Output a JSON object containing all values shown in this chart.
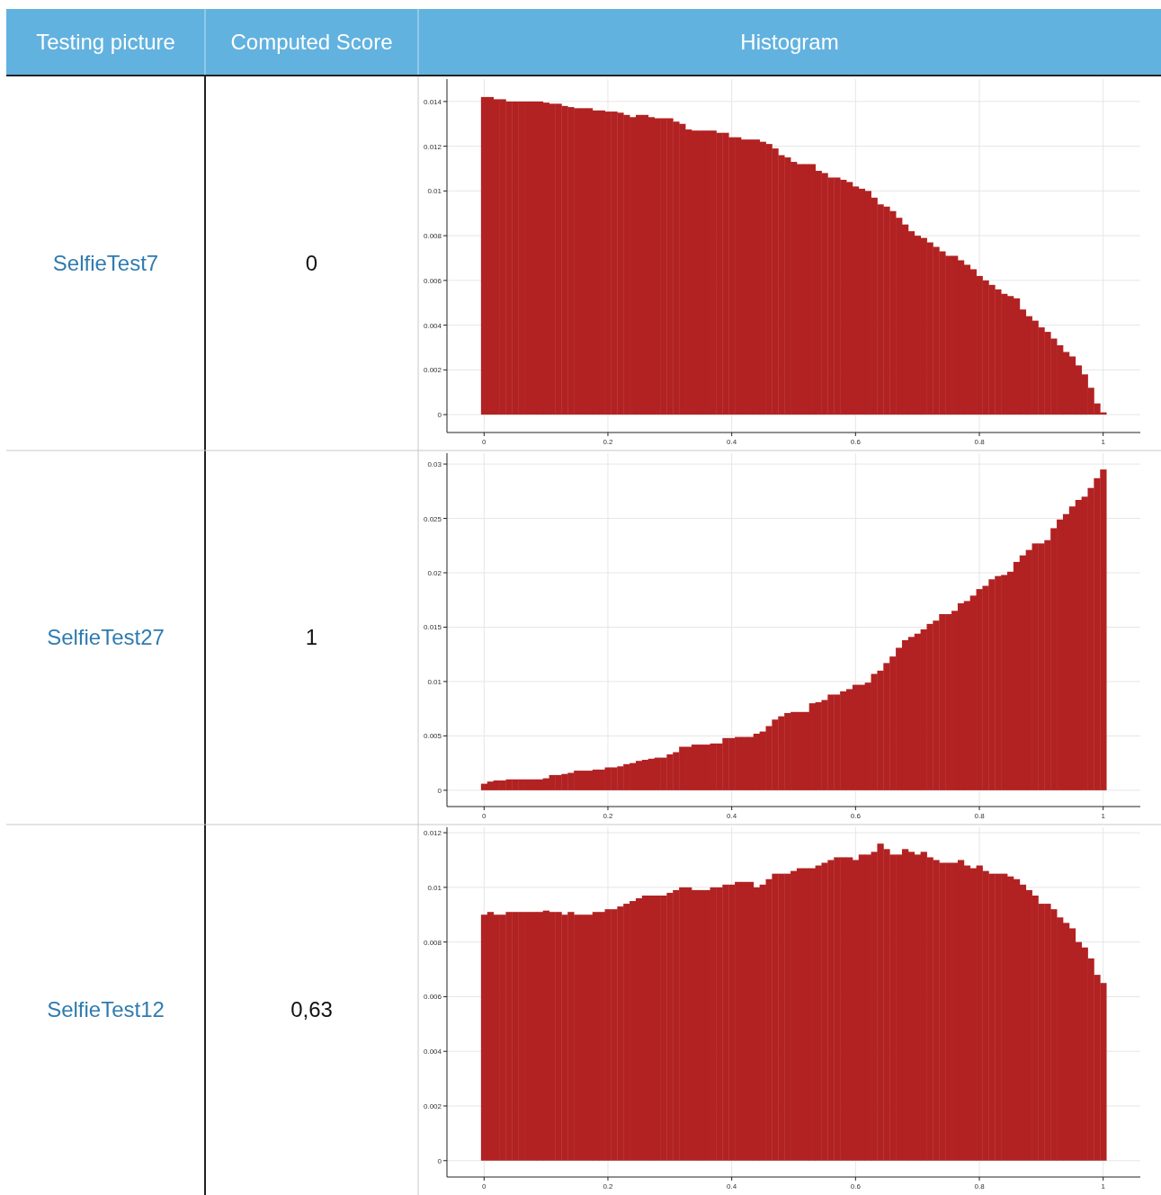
{
  "chart_data": [
    {
      "type": "other",
      "annotations": [
        "Testing picture",
        "Computed Score",
        "Histogram"
      ]
    },
    {
      "type": "other",
      "annotations": [
        "SelfieTest7",
        "0"
      ]
    },
    {
      "type": "histogram",
      "color": "#b22222",
      "xlim": [
        -0.06,
        1.06
      ],
      "ylim": [
        -0.0008,
        0.015
      ],
      "grid": true,
      "xticks": [
        0,
        0.2,
        0.4,
        0.6,
        0.8,
        1
      ],
      "yticks": [
        0,
        0.002,
        0.004,
        0.006,
        0.008,
        0.01,
        0.012,
        0.014
      ],
      "values": [
        0.0142,
        0.0142,
        0.0141,
        0.0141,
        0.014,
        0.014,
        0.014,
        0.014,
        0.014,
        0.014,
        0.01395,
        0.0139,
        0.0139,
        0.0138,
        0.01375,
        0.0137,
        0.0137,
        0.0137,
        0.0136,
        0.0136,
        0.01355,
        0.01355,
        0.0135,
        0.0134,
        0.0133,
        0.0134,
        0.0134,
        0.0133,
        0.01325,
        0.01325,
        0.01325,
        0.0131,
        0.013,
        0.01275,
        0.0127,
        0.0127,
        0.0127,
        0.0127,
        0.0126,
        0.0126,
        0.0124,
        0.0124,
        0.0123,
        0.0123,
        0.0123,
        0.0122,
        0.0121,
        0.0119,
        0.0116,
        0.0115,
        0.0113,
        0.0112,
        0.0112,
        0.0112,
        0.0109,
        0.0108,
        0.0106,
        0.0106,
        0.0105,
        0.0104,
        0.0102,
        0.0101,
        0.01,
        0.0097,
        0.0094,
        0.0093,
        0.0091,
        0.0088,
        0.0085,
        0.0082,
        0.008,
        0.0079,
        0.0077,
        0.0075,
        0.0073,
        0.0071,
        0.0071,
        0.0069,
        0.0067,
        0.0065,
        0.0062,
        0.006,
        0.0058,
        0.0056,
        0.0054,
        0.0053,
        0.0052,
        0.0047,
        0.0044,
        0.0042,
        0.0039,
        0.0037,
        0.0034,
        0.0031,
        0.0028,
        0.0026,
        0.0022,
        0.0018,
        0.0012,
        0.0005,
        0.0001
      ],
      "bins": [
        -0.005,
        0.005,
        0.015,
        0.025,
        0.035,
        0.045,
        0.055,
        0.065,
        0.075,
        0.085,
        0.095,
        0.105,
        0.115,
        0.125,
        0.135,
        0.145,
        0.155,
        0.165,
        0.175,
        0.185,
        0.195,
        0.205,
        0.215,
        0.225,
        0.235,
        0.245,
        0.255,
        0.265,
        0.275,
        0.285,
        0.295,
        0.305,
        0.315,
        0.325,
        0.335,
        0.345,
        0.355,
        0.365,
        0.375,
        0.385,
        0.395,
        0.405,
        0.415,
        0.425,
        0.435,
        0.445,
        0.455,
        0.465,
        0.475,
        0.485,
        0.495,
        0.505,
        0.515,
        0.525,
        0.535,
        0.545,
        0.555,
        0.565,
        0.575,
        0.585,
        0.595,
        0.605,
        0.615,
        0.625,
        0.635,
        0.645,
        0.655,
        0.665,
        0.675,
        0.685,
        0.695,
        0.705,
        0.715,
        0.725,
        0.735,
        0.745,
        0.755,
        0.765,
        0.775,
        0.785,
        0.795,
        0.805,
        0.815,
        0.825,
        0.835,
        0.845,
        0.855,
        0.865,
        0.875,
        0.885,
        0.895,
        0.905,
        0.915,
        0.925,
        0.935,
        0.945,
        0.955,
        0.965,
        0.975,
        0.985,
        0.995,
        1.005
      ]
    },
    {
      "type": "other",
      "annotations": [
        "SelfieTest27",
        "1"
      ]
    },
    {
      "type": "histogram",
      "color": "#b22222",
      "xlim": [
        -0.06,
        1.06
      ],
      "ylim": [
        -0.0015,
        0.031
      ],
      "grid": true,
      "xticks": [
        0,
        0.2,
        0.4,
        0.6,
        0.8,
        1
      ],
      "yticks": [
        0,
        0.005,
        0.01,
        0.015,
        0.02,
        0.025,
        0.03
      ],
      "values": [
        0.0006,
        0.0008,
        0.0009,
        0.0009,
        0.001,
        0.001,
        0.001,
        0.001,
        0.001,
        0.001,
        0.0011,
        0.0014,
        0.0014,
        0.0015,
        0.0016,
        0.0018,
        0.0018,
        0.0018,
        0.0019,
        0.0019,
        0.0021,
        0.0021,
        0.0022,
        0.0024,
        0.0025,
        0.0027,
        0.0028,
        0.0029,
        0.003,
        0.003,
        0.0033,
        0.0035,
        0.004,
        0.004,
        0.0042,
        0.0042,
        0.0042,
        0.0043,
        0.0043,
        0.0048,
        0.0048,
        0.0049,
        0.0049,
        0.0049,
        0.0052,
        0.0054,
        0.0059,
        0.0065,
        0.0068,
        0.0071,
        0.0072,
        0.0072,
        0.0072,
        0.008,
        0.0081,
        0.0083,
        0.0088,
        0.0088,
        0.0091,
        0.0093,
        0.0097,
        0.0097,
        0.0099,
        0.0107,
        0.011,
        0.0117,
        0.0123,
        0.0131,
        0.0138,
        0.0141,
        0.0144,
        0.0148,
        0.0153,
        0.0156,
        0.0162,
        0.0162,
        0.0165,
        0.0172,
        0.0174,
        0.0179,
        0.0185,
        0.0188,
        0.0194,
        0.0197,
        0.0198,
        0.0201,
        0.021,
        0.0216,
        0.0221,
        0.0227,
        0.0227,
        0.023,
        0.0241,
        0.0249,
        0.0254,
        0.0261,
        0.0267,
        0.027,
        0.0278,
        0.0287,
        0.0295
      ],
      "bins": [
        -0.005,
        0.005,
        0.015,
        0.025,
        0.035,
        0.045,
        0.055,
        0.065,
        0.075,
        0.085,
        0.095,
        0.105,
        0.115,
        0.125,
        0.135,
        0.145,
        0.155,
        0.165,
        0.175,
        0.185,
        0.195,
        0.205,
        0.215,
        0.225,
        0.235,
        0.245,
        0.255,
        0.265,
        0.275,
        0.285,
        0.295,
        0.305,
        0.315,
        0.325,
        0.335,
        0.345,
        0.355,
        0.365,
        0.375,
        0.385,
        0.395,
        0.405,
        0.415,
        0.425,
        0.435,
        0.445,
        0.455,
        0.465,
        0.475,
        0.485,
        0.495,
        0.505,
        0.515,
        0.525,
        0.535,
        0.545,
        0.555,
        0.565,
        0.575,
        0.585,
        0.595,
        0.605,
        0.615,
        0.625,
        0.635,
        0.645,
        0.655,
        0.665,
        0.675,
        0.685,
        0.695,
        0.705,
        0.715,
        0.725,
        0.735,
        0.745,
        0.755,
        0.765,
        0.775,
        0.785,
        0.795,
        0.805,
        0.815,
        0.825,
        0.835,
        0.845,
        0.855,
        0.865,
        0.875,
        0.885,
        0.895,
        0.905,
        0.915,
        0.925,
        0.935,
        0.945,
        0.955,
        0.965,
        0.975,
        0.985,
        0.995,
        1.005
      ]
    },
    {
      "type": "other",
      "annotations": [
        "SelfieTest12",
        "0,63"
      ]
    },
    {
      "type": "histogram",
      "color": "#b22222",
      "xlim": [
        -0.06,
        1.06
      ],
      "ylim": [
        -0.0006,
        0.0122
      ],
      "grid": true,
      "xticks": [
        0,
        0.2,
        0.4,
        0.6,
        0.8,
        1
      ],
      "yticks": [
        0,
        0.002,
        0.004,
        0.006,
        0.008,
        0.01,
        0.012
      ],
      "values": [
        0.009,
        0.0091,
        0.009,
        0.009,
        0.0091,
        0.0091,
        0.0091,
        0.0091,
        0.0091,
        0.0091,
        0.00915,
        0.0091,
        0.0091,
        0.009,
        0.0091,
        0.009,
        0.009,
        0.009,
        0.0091,
        0.0091,
        0.0092,
        0.0092,
        0.0093,
        0.0094,
        0.0095,
        0.0096,
        0.0097,
        0.0097,
        0.0097,
        0.0097,
        0.0098,
        0.0099,
        0.01,
        0.01,
        0.0099,
        0.0099,
        0.0099,
        0.01,
        0.01,
        0.0101,
        0.0101,
        0.0102,
        0.0102,
        0.0102,
        0.01,
        0.0101,
        0.0103,
        0.0105,
        0.0105,
        0.0105,
        0.0106,
        0.0107,
        0.0107,
        0.0107,
        0.0108,
        0.0109,
        0.011,
        0.0111,
        0.0111,
        0.0111,
        0.011,
        0.0112,
        0.0112,
        0.0113,
        0.0116,
        0.0114,
        0.0112,
        0.0112,
        0.0114,
        0.0113,
        0.0112,
        0.0113,
        0.0111,
        0.011,
        0.0109,
        0.0109,
        0.0109,
        0.011,
        0.0108,
        0.0107,
        0.0108,
        0.0106,
        0.0105,
        0.0105,
        0.0105,
        0.0104,
        0.0103,
        0.0101,
        0.0099,
        0.0097,
        0.0094,
        0.0094,
        0.0092,
        0.0089,
        0.0087,
        0.0085,
        0.008,
        0.0078,
        0.0074,
        0.0068,
        0.0065
      ],
      "bins": [
        -0.005,
        0.005,
        0.015,
        0.025,
        0.035,
        0.045,
        0.055,
        0.065,
        0.075,
        0.085,
        0.095,
        0.105,
        0.115,
        0.125,
        0.135,
        0.145,
        0.155,
        0.165,
        0.175,
        0.185,
        0.195,
        0.205,
        0.215,
        0.225,
        0.235,
        0.245,
        0.255,
        0.265,
        0.275,
        0.285,
        0.295,
        0.305,
        0.315,
        0.325,
        0.335,
        0.345,
        0.355,
        0.365,
        0.375,
        0.385,
        0.395,
        0.405,
        0.415,
        0.425,
        0.435,
        0.445,
        0.455,
        0.465,
        0.475,
        0.485,
        0.495,
        0.505,
        0.515,
        0.525,
        0.535,
        0.545,
        0.555,
        0.565,
        0.575,
        0.585,
        0.595,
        0.605,
        0.615,
        0.625,
        0.635,
        0.645,
        0.655,
        0.665,
        0.675,
        0.685,
        0.695,
        0.705,
        0.715,
        0.725,
        0.735,
        0.745,
        0.755,
        0.765,
        0.775,
        0.785,
        0.795,
        0.805,
        0.815,
        0.825,
        0.835,
        0.845,
        0.855,
        0.865,
        0.875,
        0.885,
        0.895,
        0.905,
        0.915,
        0.925,
        0.935,
        0.945,
        0.955,
        0.965,
        0.975,
        0.985,
        0.995,
        1.005
      ]
    }
  ]
}
